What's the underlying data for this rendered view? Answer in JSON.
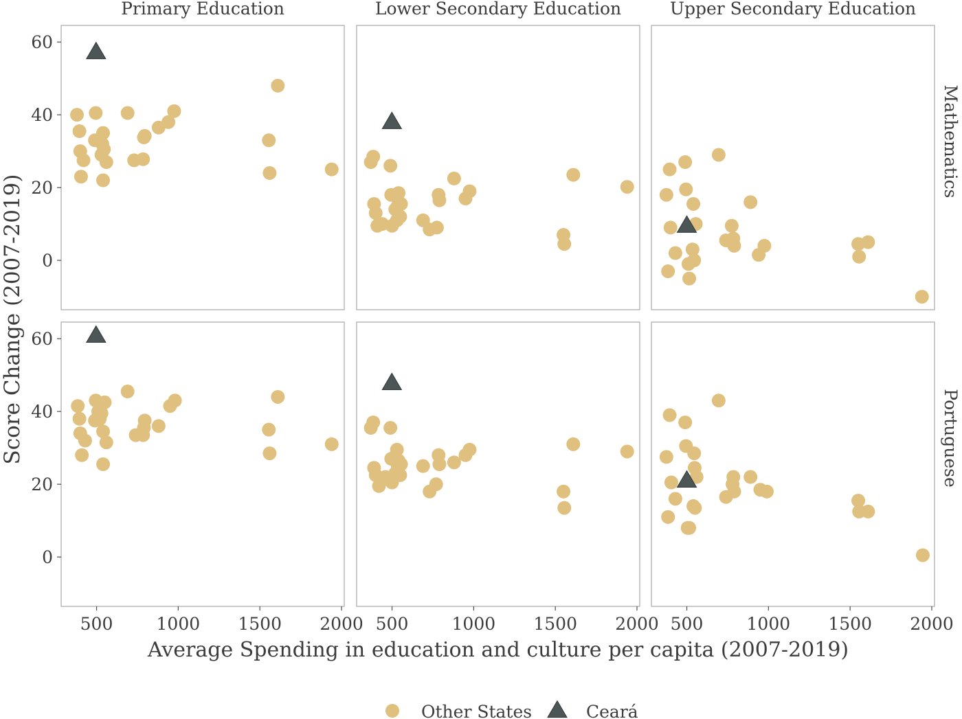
{
  "chart_data": {
    "type": "scatter",
    "facets": {
      "columns": [
        "Primary Education",
        "Lower Secondary Education",
        "Upper Secondary Education"
      ],
      "rows": [
        "Mathematics",
        "Portuguese"
      ]
    },
    "xlabel": "Average Spending in education and culture per capita (2007-2019)",
    "ylabel": "Score Change (2007-2019)",
    "xlim": [
      300,
      2000
    ],
    "ylim": [
      -13,
      64
    ],
    "x_ticks": [
      "500",
      "1000",
      "1500",
      "2000"
    ],
    "y_ticks": [
      "0",
      "20",
      "40",
      "60"
    ],
    "legend": {
      "position": "bottom"
    },
    "series": [
      {
        "name": "Other States",
        "marker": "circle",
        "color": "#e0c07f",
        "panels": [
          {
            "column": "Primary Education",
            "row": "Mathematics",
            "points": [
              [
                380,
                40
              ],
              [
                395,
                35.5
              ],
              [
                400,
                30
              ],
              [
                405,
                23
              ],
              [
                420,
                27.5
              ],
              [
                490,
                33
              ],
              [
                495,
                40.5
              ],
              [
                530,
                29
              ],
              [
                535,
                32
              ],
              [
                540,
                35
              ],
              [
                540,
                22
              ],
              [
                545,
                30.5
              ],
              [
                560,
                27
              ],
              [
                690,
                40.5
              ],
              [
                730,
                27.5
              ],
              [
                785,
                27.8
              ],
              [
                790,
                33.8
              ],
              [
                795,
                34.2
              ],
              [
                880,
                36.5
              ],
              [
                940,
                38
              ],
              [
                975,
                41
              ],
              [
                1555,
                33
              ],
              [
                1560,
                24
              ],
              [
                1610,
                48
              ],
              [
                1940,
                25
              ]
            ]
          },
          {
            "column": "Lower Secondary Education",
            "row": "Mathematics",
            "points": [
              [
                370,
                27
              ],
              [
                385,
                28.5
              ],
              [
                390,
                15.5
              ],
              [
                400,
                13
              ],
              [
                410,
                9.5
              ],
              [
                440,
                10
              ],
              [
                490,
                26
              ],
              [
                495,
                18
              ],
              [
                500,
                9.5
              ],
              [
                520,
                14
              ],
              [
                530,
                11
              ],
              [
                535,
                15
              ],
              [
                540,
                18.5
              ],
              [
                550,
                12
              ],
              [
                555,
                15.5
              ],
              [
                690,
                11
              ],
              [
                730,
                8.5
              ],
              [
                775,
                9
              ],
              [
                785,
                18
              ],
              [
                790,
                16.5
              ],
              [
                880,
                22.5
              ],
              [
                950,
                17
              ],
              [
                975,
                19
              ],
              [
                1550,
                7
              ],
              [
                1555,
                4.5
              ],
              [
                1610,
                23.5
              ],
              [
                1940,
                20.2
              ]
            ]
          },
          {
            "column": "Upper Secondary Education",
            "row": "Mathematics",
            "points": [
              [
                375,
                18
              ],
              [
                385,
                -3
              ],
              [
                395,
                25
              ],
              [
                400,
                9
              ],
              [
                430,
                2
              ],
              [
                490,
                27
              ],
              [
                495,
                19.5
              ],
              [
                510,
                -1
              ],
              [
                515,
                -5
              ],
              [
                535,
                3
              ],
              [
                540,
                15.5
              ],
              [
                545,
                0
              ],
              [
                555,
                10
              ],
              [
                695,
                29
              ],
              [
                740,
                5.5
              ],
              [
                775,
                9.5
              ],
              [
                785,
                6
              ],
              [
                790,
                4
              ],
              [
                890,
                16
              ],
              [
                940,
                1.5
              ],
              [
                975,
                4
              ],
              [
                1550,
                4.5
              ],
              [
                1555,
                1
              ],
              [
                1610,
                5
              ],
              [
                1940,
                -10
              ]
            ]
          },
          {
            "column": "Primary Education",
            "row": "Portuguese",
            "points": [
              [
                385,
                41.5
              ],
              [
                395,
                38
              ],
              [
                400,
                34
              ],
              [
                410,
                28
              ],
              [
                430,
                32
              ],
              [
                490,
                37.5
              ],
              [
                495,
                43
              ],
              [
                510,
                40
              ],
              [
                520,
                38
              ],
              [
                530,
                39.5
              ],
              [
                535,
                42
              ],
              [
                540,
                34.5
              ],
              [
                540,
                25.5
              ],
              [
                550,
                42.5
              ],
              [
                560,
                31.5
              ],
              [
                690,
                45.5
              ],
              [
                740,
                33.5
              ],
              [
                785,
                33.5
              ],
              [
                790,
                35.5
              ],
              [
                795,
                37.5
              ],
              [
                880,
                36
              ],
              [
                950,
                41.5
              ],
              [
                980,
                43
              ],
              [
                1555,
                35
              ],
              [
                1560,
                28.5
              ],
              [
                1610,
                44
              ],
              [
                1940,
                31
              ]
            ]
          },
          {
            "column": "Lower Secondary Education",
            "row": "Portuguese",
            "points": [
              [
                370,
                35.5
              ],
              [
                385,
                37
              ],
              [
                390,
                24.5
              ],
              [
                400,
                22.5
              ],
              [
                420,
                19.5
              ],
              [
                460,
                22
              ],
              [
                490,
                35.5
              ],
              [
                495,
                27
              ],
              [
                500,
                20.5
              ],
              [
                520,
                23
              ],
              [
                530,
                29.5
              ],
              [
                535,
                25
              ],
              [
                540,
                26.5
              ],
              [
                550,
                22.5
              ],
              [
                555,
                25.5
              ],
              [
                690,
                25
              ],
              [
                730,
                18
              ],
              [
                770,
                20
              ],
              [
                785,
                28
              ],
              [
                790,
                25.5
              ],
              [
                880,
                26
              ],
              [
                950,
                28
              ],
              [
                975,
                29.5
              ],
              [
                1550,
                18
              ],
              [
                1555,
                13.5
              ],
              [
                1610,
                31
              ],
              [
                1940,
                29
              ]
            ]
          },
          {
            "column": "Upper Secondary Education",
            "row": "Portuguese",
            "points": [
              [
                375,
                27.5
              ],
              [
                385,
                11
              ],
              [
                395,
                39
              ],
              [
                405,
                20.5
              ],
              [
                430,
                16
              ],
              [
                490,
                37
              ],
              [
                495,
                30.5
              ],
              [
                505,
                8
              ],
              [
                515,
                8
              ],
              [
                540,
                14
              ],
              [
                545,
                28.5
              ],
              [
                548,
                24.5
              ],
              [
                550,
                13.5
              ],
              [
                560,
                22
              ],
              [
                695,
                43
              ],
              [
                740,
                16.5
              ],
              [
                780,
                20
              ],
              [
                785,
                22
              ],
              [
                790,
                18
              ],
              [
                890,
                22
              ],
              [
                950,
                18.5
              ],
              [
                990,
                18
              ],
              [
                1550,
                15.5
              ],
              [
                1555,
                12.5
              ],
              [
                1610,
                12.5
              ],
              [
                1945,
                0.5
              ]
            ]
          }
        ]
      },
      {
        "name": "Ceará",
        "marker": "triangle",
        "color": "#4d5656",
        "panels": [
          {
            "column": "Primary Education",
            "row": "Mathematics",
            "points": [
              [
                497,
                57.2
              ]
            ]
          },
          {
            "column": "Lower Secondary Education",
            "row": "Mathematics",
            "points": [
              [
                499,
                38
              ]
            ]
          },
          {
            "column": "Upper Secondary Education",
            "row": "Mathematics",
            "points": [
              [
                500,
                9.5
              ]
            ]
          },
          {
            "column": "Primary Education",
            "row": "Portuguese",
            "points": [
              [
                497,
                60.8
              ]
            ]
          },
          {
            "column": "Lower Secondary Education",
            "row": "Portuguese",
            "points": [
              [
                499,
                47.8
              ]
            ]
          },
          {
            "column": "Upper Secondary Education",
            "row": "Portuguese",
            "points": [
              [
                500,
                21
              ]
            ]
          }
        ]
      }
    ]
  }
}
